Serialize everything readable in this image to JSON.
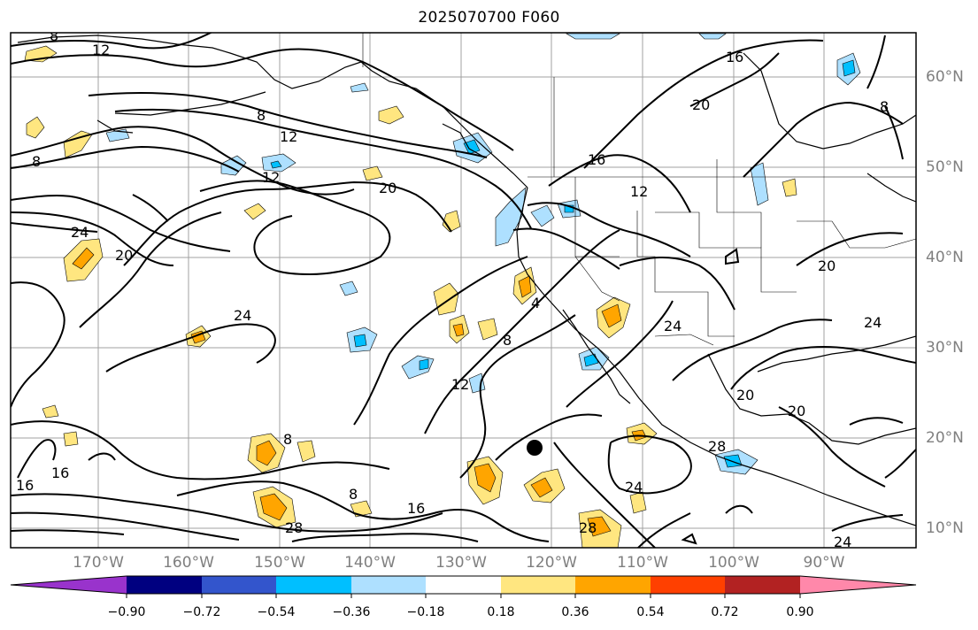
{
  "title": "2025070700 F060",
  "lon_labels": [
    "170°W",
    "160°W",
    "150°W",
    "140°W",
    "130°W",
    "120°W",
    "110°W",
    "100°W",
    "90°W"
  ],
  "lat_labels": [
    "60°N",
    "50°N",
    "40°N",
    "30°N",
    "20°N",
    "10°N"
  ],
  "colorbar": {
    "tick_labels": [
      "−0.90",
      "−0.72",
      "−0.54",
      "−0.36",
      "−0.18",
      "0.18",
      "0.36",
      "0.54",
      "0.72",
      "0.90"
    ],
    "colors": [
      "#9933cc",
      "#000080",
      "#3355cc",
      "#00bfff",
      "#aee0ff",
      "#ffffff",
      "#ffe680",
      "#ffa500",
      "#ff4000",
      "#b22222",
      "#ff88aa"
    ]
  },
  "contour_labels": [
    "8",
    "12",
    "12",
    "8",
    "16",
    "20",
    "24",
    "20",
    "16",
    "12",
    "20",
    "24",
    "12",
    "4",
    "8",
    "12",
    "20",
    "24",
    "20",
    "8",
    "8",
    "8",
    "16",
    "8",
    "16",
    "28",
    "24",
    "24",
    "28",
    "28",
    "24",
    "20",
    "16"
  ],
  "storm_marker": "black-dot"
}
